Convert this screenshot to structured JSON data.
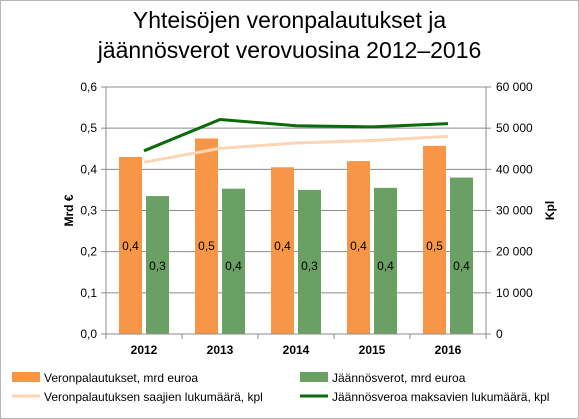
{
  "chart_data": {
    "type": "bar",
    "title_line1": "Yhteisöjen veronpalautukset ja",
    "title_line2": "jäännösverot verovuosina 2012–2016",
    "ylabel_left": "Mrd €",
    "ylabel_right": "Kpl",
    "categories": [
      "2012",
      "2013",
      "2014",
      "2015",
      "2016"
    ],
    "ylim_left": [
      0,
      0.6
    ],
    "ylim_right": [
      0,
      60000
    ],
    "yticks_left": [
      "0,0",
      "0,1",
      "0,2",
      "0,3",
      "0,4",
      "0,5",
      "0,6"
    ],
    "yticks_right": [
      "0",
      "10 000",
      "20 000",
      "30 000",
      "40 000",
      "50 000",
      "60 000"
    ],
    "grid": true,
    "legend_position": "bottom",
    "bar_series": [
      {
        "name": "Veronpalautukset, mrd euroa",
        "color": "#f79646",
        "values": [
          0.43,
          0.475,
          0.405,
          0.42,
          0.457
        ],
        "labels": [
          "0,4",
          "0,5",
          "0,4",
          "0,4",
          "0,5"
        ]
      },
      {
        "name": "Jäännösverot, mrd  euroa",
        "color": "#6aa064",
        "values": [
          0.335,
          0.353,
          0.35,
          0.355,
          0.38
        ],
        "labels": [
          "0,3",
          "0,4",
          "0,3",
          "0,4",
          "0,4"
        ]
      }
    ],
    "line_series": [
      {
        "name": "Veronpalautuksen saajien lukumäärä, kpl",
        "color": "#fcd5b4",
        "axis": "right",
        "values": [
          41700,
          45100,
          46400,
          47000,
          48000
        ]
      },
      {
        "name": "Jäännösveroa maksavien lukumäärä, kpl",
        "color": "#0b6b0b",
        "axis": "right",
        "values": [
          44500,
          52100,
          50600,
          50300,
          51100
        ]
      }
    ]
  }
}
